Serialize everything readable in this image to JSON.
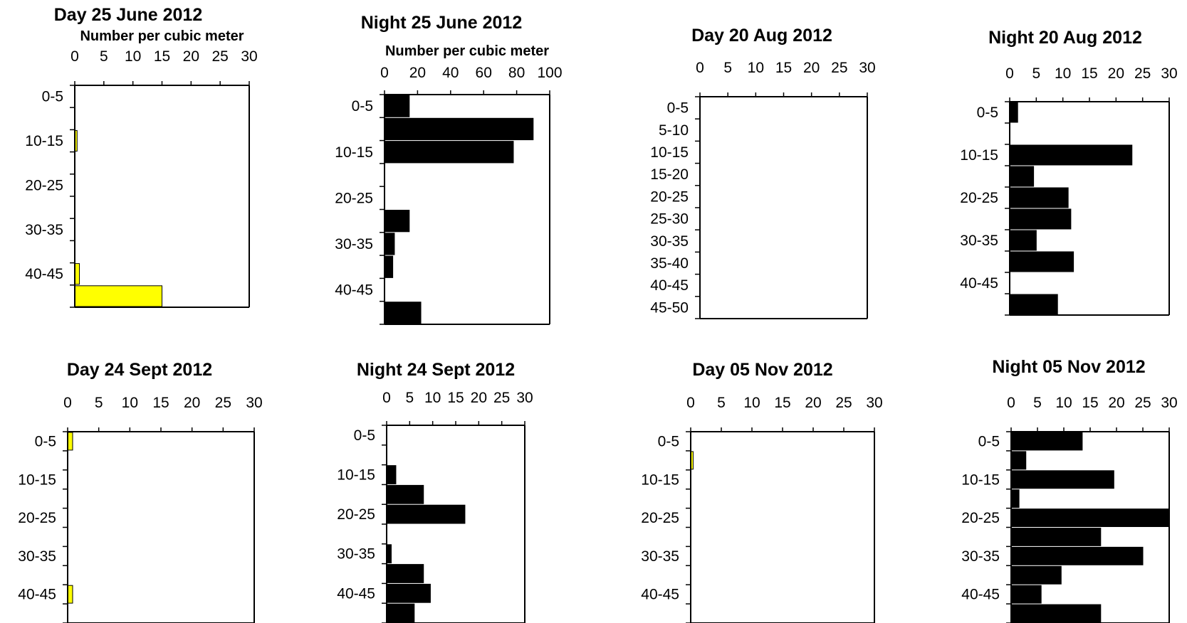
{
  "chart_data": [
    {
      "type": "bar",
      "orientation": "horizontal",
      "title": "Day 25 June 2012",
      "xlabel": "Number per cubic meter",
      "xlim": [
        0,
        30
      ],
      "xticks": [
        0,
        5,
        10,
        15,
        20,
        25,
        30
      ],
      "categories": [
        "0-5",
        "5-10",
        "10-15",
        "15-20",
        "20-25",
        "25-30",
        "30-35",
        "35-40",
        "40-45",
        "45-50"
      ],
      "y_tick_labels": [
        "0-5",
        "10-15",
        "20-25",
        "30-35",
        "40-45"
      ],
      "values": [
        0,
        0,
        0.4,
        0,
        0,
        0,
        0,
        0,
        0.8,
        15
      ],
      "color": "#ffff00"
    },
    {
      "type": "bar",
      "orientation": "horizontal",
      "title": "Night 25 June 2012",
      "xlabel": "Number per cubic meter",
      "xlim": [
        0,
        100
      ],
      "xticks": [
        0,
        20,
        40,
        60,
        80,
        100
      ],
      "categories": [
        "0-5",
        "5-10",
        "10-15",
        "15-20",
        "20-25",
        "25-30",
        "30-35",
        "35-40",
        "40-45",
        "45-50"
      ],
      "y_tick_labels": [
        "0-5",
        "10-15",
        "20-25",
        "30-35",
        "40-45"
      ],
      "values": [
        15,
        90,
        78,
        0,
        0,
        15,
        6,
        5,
        0,
        22
      ],
      "color": "#000000"
    },
    {
      "type": "bar",
      "orientation": "horizontal",
      "title": "Day 20 Aug 2012",
      "xlabel": "",
      "xlim": [
        0,
        30
      ],
      "xticks": [
        0,
        5,
        10,
        15,
        20,
        25,
        30
      ],
      "categories": [
        "0-5",
        "5-10",
        "10-15",
        "15-20",
        "20-25",
        "25-30",
        "30-35",
        "35-40",
        "40-45",
        "45-50"
      ],
      "y_tick_labels": [
        "0-5",
        "5-10",
        "10-15",
        "15-20",
        "20-25",
        "25-30",
        "30-35",
        "35-40",
        "40-45",
        "45-50"
      ],
      "values": [
        0,
        0,
        0,
        0,
        0,
        0,
        0,
        0,
        0,
        0
      ],
      "color": "#ffff00"
    },
    {
      "type": "bar",
      "orientation": "horizontal",
      "title": "Night 20 Aug 2012",
      "xlabel": "",
      "xlim": [
        0,
        30
      ],
      "xticks": [
        0,
        5,
        10,
        15,
        20,
        25,
        30
      ],
      "categories": [
        "0-5",
        "5-10",
        "10-15",
        "15-20",
        "20-25",
        "25-30",
        "30-35",
        "35-40",
        "40-45",
        "45-50"
      ],
      "y_tick_labels": [
        "0-5",
        "10-15",
        "20-25",
        "30-35",
        "40-45"
      ],
      "values": [
        1.5,
        0,
        23,
        4.5,
        11,
        11.5,
        5,
        12,
        0,
        9
      ],
      "color": "#000000"
    },
    {
      "type": "bar",
      "orientation": "horizontal",
      "title": "Day 24 Sept 2012",
      "xlabel": "",
      "xlim": [
        0,
        30
      ],
      "xticks": [
        0,
        5,
        10,
        15,
        20,
        25,
        30
      ],
      "categories": [
        "0-5",
        "5-10",
        "10-15",
        "15-20",
        "20-25",
        "25-30",
        "30-35",
        "35-40",
        "40-45",
        "45-50"
      ],
      "y_tick_labels": [
        "0-5",
        "10-15",
        "20-25",
        "30-35",
        "40-45"
      ],
      "values": [
        0.8,
        0,
        0,
        0,
        0,
        0,
        0,
        0,
        0.8,
        0
      ],
      "color": "#ffff00"
    },
    {
      "type": "bar",
      "orientation": "horizontal",
      "title": "Night 24 Sept 2012",
      "xlabel": "",
      "xlim": [
        0,
        30
      ],
      "xticks": [
        0,
        5,
        10,
        15,
        20,
        25,
        30
      ],
      "categories": [
        "0-5",
        "5-10",
        "10-15",
        "15-20",
        "20-25",
        "25-30",
        "30-35",
        "35-40",
        "40-45",
        "45-50"
      ],
      "y_tick_labels": [
        "0-5",
        "10-15",
        "20-25",
        "30-35",
        "40-45"
      ],
      "values": [
        0,
        0,
        2,
        8,
        17,
        0,
        1,
        8,
        9.5,
        6
      ],
      "color": "#000000"
    },
    {
      "type": "bar",
      "orientation": "horizontal",
      "title": "Day 05 Nov 2012",
      "xlabel": "",
      "xlim": [
        0,
        30
      ],
      "xticks": [
        0,
        5,
        10,
        15,
        20,
        25,
        30
      ],
      "categories": [
        "0-5",
        "5-10",
        "10-15",
        "15-20",
        "20-25",
        "25-30",
        "30-35",
        "35-40",
        "40-45",
        "45-50"
      ],
      "y_tick_labels": [
        "0-5",
        "10-15",
        "20-25",
        "30-35",
        "40-45"
      ],
      "values": [
        0,
        0.4,
        0,
        0,
        0,
        0,
        0,
        0,
        0,
        0
      ],
      "color": "#ffff00"
    },
    {
      "type": "bar",
      "orientation": "horizontal",
      "title": "Night 05 Nov 2012",
      "xlabel": "",
      "xlim": [
        0,
        30
      ],
      "xticks": [
        0,
        5,
        10,
        15,
        20,
        25,
        30
      ],
      "categories": [
        "0-5",
        "5-10",
        "10-15",
        "15-20",
        "20-25",
        "25-30",
        "30-35",
        "35-40",
        "40-45",
        "45-50"
      ],
      "y_tick_labels": [
        "0-5",
        "10-15",
        "20-25",
        "30-35",
        "40-45"
      ],
      "values": [
        13.5,
        2.8,
        19.5,
        1.5,
        30,
        17,
        25,
        9.5,
        5.7,
        17
      ],
      "color": "#000000"
    }
  ]
}
